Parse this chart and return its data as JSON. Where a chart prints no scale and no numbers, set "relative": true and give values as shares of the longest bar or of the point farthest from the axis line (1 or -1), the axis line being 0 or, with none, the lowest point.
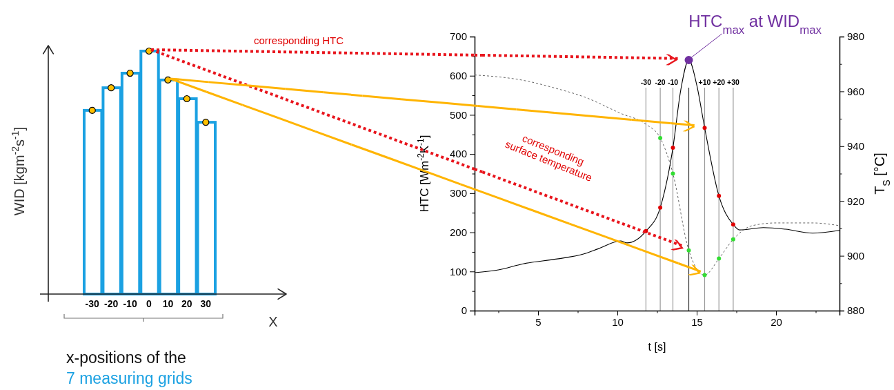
{
  "chart_data": [
    {
      "type": "bar",
      "relative": true,
      "categories": [
        "-30",
        "-20",
        "-10",
        "0",
        "10",
        "20",
        "30"
      ],
      "xlabel": "X",
      "ylabel": "WID [kgm$^{-2}$s$^{-1}$]",
      "series": [
        {
          "type": "bar",
          "color": "#1ba1e2",
          "values": [
            0.756,
            0.849,
            0.909,
            1,
            0.881,
            0.804,
            0.707
          ]
        },
        {
          "type": "scatter",
          "marker": "circle",
          "color": "#ffc000",
          "x": [
            "-30",
            "-20",
            "-10",
            "0",
            "10",
            "20",
            "30"
          ],
          "values": [
            0.756,
            0.849,
            0.909,
            1,
            0.881,
            0.804,
            0.707
          ]
        }
      ],
      "annotations": [
        "x-positions of the",
        "7 measuring grids"
      ]
    },
    {
      "type": "line",
      "xlabel": "t [s]",
      "ylabel": "HTC [Wm$^{-2}$K$^{-1}$]",
      "y2label": "T$_{S}$ [°C]",
      "xlim": [
        1,
        24
      ],
      "xticks": [
        {
          "value": 2.5,
          "label": null
        },
        5,
        {
          "value": 7.5,
          "label": null
        },
        10,
        {
          "value": 12.5,
          "label": null
        },
        15,
        {
          "value": 17.5,
          "label": null
        },
        20,
        {
          "value": 22.5,
          "label": null
        }
      ],
      "ylim": [
        0,
        700
      ],
      "yticks": [
        0,
        {
          "value": 50,
          "label": null
        },
        100,
        {
          "value": 150,
          "label": null
        },
        200,
        {
          "value": 250,
          "label": null
        },
        300,
        {
          "value": 350,
          "label": null
        },
        400,
        {
          "value": 450,
          "label": null
        },
        500,
        {
          "value": 550,
          "label": null
        },
        600,
        {
          "value": 650,
          "label": null
        },
        700
      ],
      "y2lim": [
        880,
        980
      ],
      "y2ticks": [
        880,
        {
          "value": 890,
          "label": null
        },
        900,
        {
          "value": 910,
          "label": null
        },
        920,
        {
          "value": 930,
          "label": null
        },
        940,
        {
          "value": 950,
          "label": null
        },
        960,
        {
          "value": 970,
          "label": null
        },
        980
      ],
      "series": [
        {
          "type": "line",
          "line_style": "solid",
          "color": "#000000",
          "x": [
            1,
            2.5,
            4.1,
            6.2,
            7.9,
            8.8,
            10.2,
            10.6,
            11.8,
            12.7,
            13.5,
            14,
            14.5,
            15,
            15.5,
            16.4,
            17.3,
            17.7,
            19.2,
            20.6,
            22.3,
            24
          ],
          "values": [
            97,
            104,
            120,
            132,
            145,
            158,
            178,
            173,
            203,
            263,
            416,
            565,
            640,
            577,
            467,
            293,
            220,
            206,
            212,
            208,
            198,
            205
          ]
        },
        {
          "type": "line",
          "axis": "y2",
          "line_style": "dashed",
          "color": "#555555",
          "x": [
            1,
            4.1,
            6.2,
            7.9,
            10.2,
            11.8,
            12.7,
            13.5,
            14.5,
            15.5,
            16.4,
            17.3,
            18.5,
            20,
            22.3,
            24
          ],
          "values": [
            966,
            964,
            961,
            958,
            952,
            948,
            943,
            930,
            902,
            893,
            899,
            906,
            911,
            912,
            912,
            911
          ]
        },
        {
          "type": "scatter",
          "marker": "circle",
          "color": "#e00000",
          "x": [
            11.8,
            12.7,
            13.5,
            15.5,
            16.4,
            17.3
          ],
          "values": [
            203,
            263,
            416,
            467,
            293,
            220
          ]
        },
        {
          "type": "scatter",
          "axis": "y2",
          "marker": "circle",
          "color": "#33dd33",
          "x": [
            12.7,
            13.5,
            14.5,
            15.5,
            16.4,
            17.3
          ],
          "values": [
            943,
            930,
            902,
            893,
            899,
            906
          ]
        },
        {
          "type": "scatter",
          "marker": "circle",
          "color": "#7030a0",
          "x": [
            14.5
          ],
          "values": [
            640
          ]
        }
      ],
      "ref_lines": [
        {
          "axis": "x",
          "value": 11.8,
          "color": "#999999"
        },
        {
          "axis": "x",
          "value": 12.7,
          "color": "#999999"
        },
        {
          "axis": "x",
          "value": 13.5,
          "color": "#999999"
        },
        {
          "axis": "x",
          "value": 14.5,
          "color": "#333333"
        },
        {
          "axis": "x",
          "value": 15.5,
          "color": "#999999"
        },
        {
          "axis": "x",
          "value": 16.4,
          "color": "#999999"
        },
        {
          "axis": "x",
          "value": 17.3,
          "color": "#999999"
        }
      ],
      "annotations": [
        "corresponding HTC",
        "corresponding surface temperature",
        {
          "text": "HTC$_{max}$ at WID$_{max}$",
          "x": 14.5,
          "y": 640
        },
        "-30",
        "-20",
        "-10",
        "+10",
        "+20",
        "+30"
      ]
    }
  ]
}
